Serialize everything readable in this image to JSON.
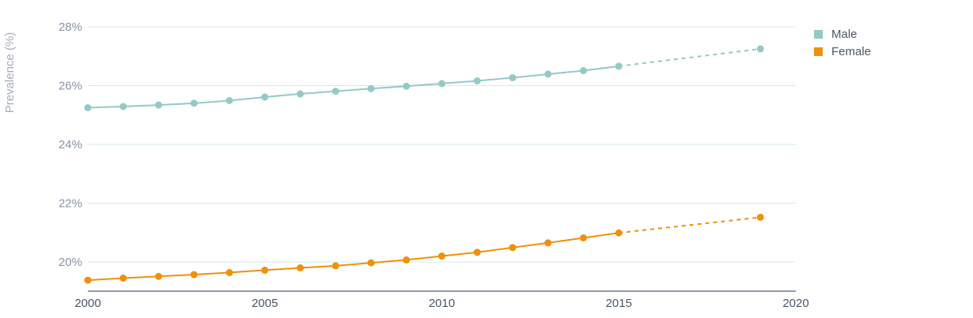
{
  "chart_data": {
    "type": "line",
    "ylabel": "Prevalence (%)",
    "xlabel": "",
    "xlim": [
      2000,
      2020
    ],
    "ylim": [
      19,
      28
    ],
    "x_ticks": [
      2000,
      2005,
      2010,
      2015,
      2020
    ],
    "x_tick_labels": [
      "2000",
      "2005",
      "2010",
      "2015",
      "2020"
    ],
    "y_ticks": [
      20,
      22,
      24,
      26,
      28
    ],
    "y_tick_labels": [
      "20%",
      "22%",
      "24%",
      "26%",
      "28%"
    ],
    "grid": true,
    "legend_position": "top-right",
    "series": [
      {
        "name": "Male",
        "color": "#94c9c7",
        "x": [
          2000,
          2001,
          2002,
          2003,
          2004,
          2005,
          2006,
          2007,
          2008,
          2009,
          2010,
          2011,
          2012,
          2013,
          2014,
          2015,
          2019
        ],
        "values": [
          25.25,
          25.29,
          25.34,
          25.4,
          25.49,
          25.61,
          25.72,
          25.81,
          25.9,
          25.98,
          26.07,
          26.16,
          26.27,
          26.39,
          26.51,
          26.66,
          27.25
        ],
        "projected_from": 2015
      },
      {
        "name": "Female",
        "color": "#f0900c",
        "x": [
          2000,
          2001,
          2002,
          2003,
          2004,
          2005,
          2006,
          2007,
          2008,
          2009,
          2010,
          2011,
          2012,
          2013,
          2014,
          2015,
          2019
        ],
        "values": [
          19.38,
          19.45,
          19.51,
          19.57,
          19.64,
          19.72,
          19.8,
          19.87,
          19.97,
          20.07,
          20.2,
          20.33,
          20.49,
          20.65,
          20.82,
          20.99,
          21.52
        ],
        "projected_from": 2015
      }
    ]
  }
}
